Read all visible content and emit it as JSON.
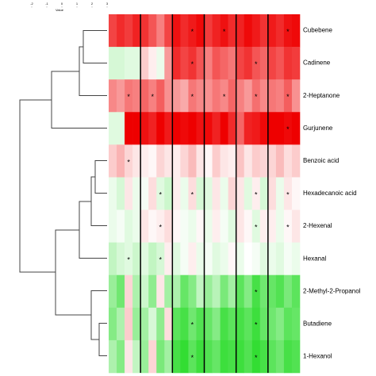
{
  "chart_data": {
    "type": "heatmap",
    "rows": [
      "Cubebene",
      "Cadinene",
      "2-Heptanone",
      "Gurjunene",
      "Benzoic acid",
      "Hexadecanoic acid",
      "2-Hexenal",
      "Hexanal",
      "2-Methyl-2-Propanol",
      "Butadiene",
      "1-Hexanol"
    ],
    "columns": [
      null,
      null,
      null,
      null,
      null,
      null,
      null,
      null,
      null,
      null,
      null,
      null,
      null,
      null,
      null,
      null,
      null,
      null,
      null,
      null,
      null,
      null,
      null,
      null
    ],
    "values": [
      [
        2.2,
        2.5,
        2.3,
        2.6,
        2.4,
        2.0,
        1.5,
        2.2,
        2.8,
        2.5,
        2.7,
        2.9,
        2.3,
        2.6,
        2.8,
        2.5,
        2.6,
        2.9,
        2.7,
        2.4,
        2.7,
        2.5,
        2.8,
        2.9
      ],
      [
        -0.4,
        -0.4,
        -0.3,
        -0.3,
        0.6,
        0.2,
        -0.2,
        1.2,
        2.5,
        2.2,
        2.4,
        2.0,
        1.5,
        2.0,
        1.8,
        1.6,
        2.2,
        2.4,
        2.0,
        1.8,
        2.2,
        2.0,
        2.4,
        2.3
      ],
      [
        1.4,
        1.2,
        1.6,
        1.5,
        1.8,
        1.5,
        1.9,
        1.3,
        1.2,
        1.0,
        1.6,
        1.4,
        1.3,
        1.6,
        1.4,
        1.8,
        1.5,
        1.2,
        1.7,
        1.4,
        1.6,
        1.5,
        1.9,
        1.3
      ],
      [
        -0.3,
        -0.3,
        3.0,
        3.0,
        2.8,
        2.6,
        3.0,
        2.7,
        3.0,
        2.9,
        3.0,
        2.8,
        2.9,
        2.6,
        3.0,
        2.5,
        1.8,
        2.6,
        2.7,
        2.9,
        3.0,
        3.0,
        2.9,
        3.0
      ],
      [
        0.6,
        0.9,
        0.5,
        0.3,
        0.2,
        0.1,
        0.5,
        0.3,
        0.2,
        0.5,
        0.8,
        0.3,
        0.1,
        0.6,
        0.3,
        0.2,
        0.7,
        0.3,
        0.6,
        0.5,
        0.5,
        0.8,
        0.4,
        0.6
      ],
      [
        -0.2,
        -0.4,
        0.3,
        -0.2,
        -0.1,
        0.4,
        -0.3,
        -0.5,
        0.2,
        -0.2,
        0.4,
        -0.4,
        -0.3,
        0.3,
        -0.2,
        0.5,
        0.3,
        -0.3,
        0.2,
        -0.4,
        0.4,
        -0.2,
        0.3,
        0.1
      ],
      [
        -0.2,
        -0.1,
        -0.3,
        -0.2,
        0.3,
        0.1,
        0.2,
        0.4,
        0.1,
        -0.1,
        -0.2,
        0.1,
        -0.2,
        0.2,
        -0.1,
        -0.3,
        0.3,
        0.1,
        -0.3,
        0.2,
        0.2,
        -0.2,
        0.1,
        0.3
      ],
      [
        -0.6,
        -0.4,
        -0.3,
        -0.5,
        -0.3,
        -0.6,
        -0.4,
        0.2,
        -0.3,
        -0.1,
        0.2,
        -0.2,
        -0.1,
        -0.3,
        -0.2,
        0.1,
        -0.2,
        0.0,
        -0.1,
        -0.3,
        -0.2,
        -0.3,
        -0.1,
        -0.2
      ],
      [
        -1.0,
        -1.4,
        0.5,
        -0.8,
        -0.5,
        -1.1,
        0.3,
        -0.9,
        -0.8,
        -1.5,
        -1.2,
        -0.6,
        -1.0,
        -0.7,
        -1.3,
        -0.9,
        -1.6,
        -1.2,
        -1.8,
        -1.4,
        -1.5,
        -1.7,
        -1.3,
        -1.6
      ],
      [
        -1.2,
        -0.8,
        0.6,
        -1.0,
        -0.9,
        -0.4,
        -1.1,
        0.4,
        -1.6,
        -1.8,
        -1.4,
        -1.7,
        -1.5,
        -1.2,
        -1.8,
        -1.6,
        -1.8,
        -1.6,
        -1.9,
        -1.5,
        -1.4,
        -1.2,
        -1.6,
        -1.5
      ],
      [
        -0.8,
        -1.2,
        0.3,
        -0.6,
        -1.0,
        0.5,
        -1.3,
        -0.9,
        -1.8,
        -2.0,
        -1.6,
        -1.9,
        -1.7,
        -1.5,
        -1.9,
        -1.8,
        -1.9,
        -1.7,
        -2.0,
        -1.8,
        -1.6,
        -1.4,
        -1.8,
        -1.7
      ]
    ],
    "vlim": [
      -2,
      3
    ],
    "colors": {
      "low": "#33dd33",
      "mid": "#ffffff",
      "high": "#ee0000"
    },
    "colorbar": {
      "title": "Value",
      "ticks": [
        -2,
        -1,
        0,
        1,
        2,
        3
      ]
    },
    "annotations": [
      {
        "row": 0,
        "col": 10,
        "text": "*"
      },
      {
        "row": 0,
        "col": 14,
        "text": "*"
      },
      {
        "row": 0,
        "col": 22,
        "text": "*"
      },
      {
        "row": 1,
        "col": 10,
        "text": "*"
      },
      {
        "row": 1,
        "col": 18,
        "text": "*"
      },
      {
        "row": 2,
        "col": 2,
        "text": "*"
      },
      {
        "row": 2,
        "col": 5,
        "text": "*"
      },
      {
        "row": 2,
        "col": 10,
        "text": "*"
      },
      {
        "row": 2,
        "col": 14,
        "text": "*"
      },
      {
        "row": 2,
        "col": 18,
        "text": "*"
      },
      {
        "row": 2,
        "col": 22,
        "text": "*"
      },
      {
        "row": 3,
        "col": 22,
        "text": "*"
      },
      {
        "row": 4,
        "col": 2,
        "text": "*"
      },
      {
        "row": 5,
        "col": 6,
        "text": "*"
      },
      {
        "row": 5,
        "col": 10,
        "text": "*"
      },
      {
        "row": 5,
        "col": 18,
        "text": "*"
      },
      {
        "row": 5,
        "col": 22,
        "text": "*"
      },
      {
        "row": 6,
        "col": 6,
        "text": "*"
      },
      {
        "row": 6,
        "col": 18,
        "text": "*"
      },
      {
        "row": 6,
        "col": 22,
        "text": "*"
      },
      {
        "row": 7,
        "col": 2,
        "text": "*"
      },
      {
        "row": 7,
        "col": 6,
        "text": "*"
      },
      {
        "row": 8,
        "col": 18,
        "text": "*"
      },
      {
        "row": 9,
        "col": 10,
        "text": "*"
      },
      {
        "row": 9,
        "col": 18,
        "text": "*"
      },
      {
        "row": 10,
        "col": 10,
        "text": "*"
      },
      {
        "row": 10,
        "col": 18,
        "text": "*"
      }
    ]
  }
}
